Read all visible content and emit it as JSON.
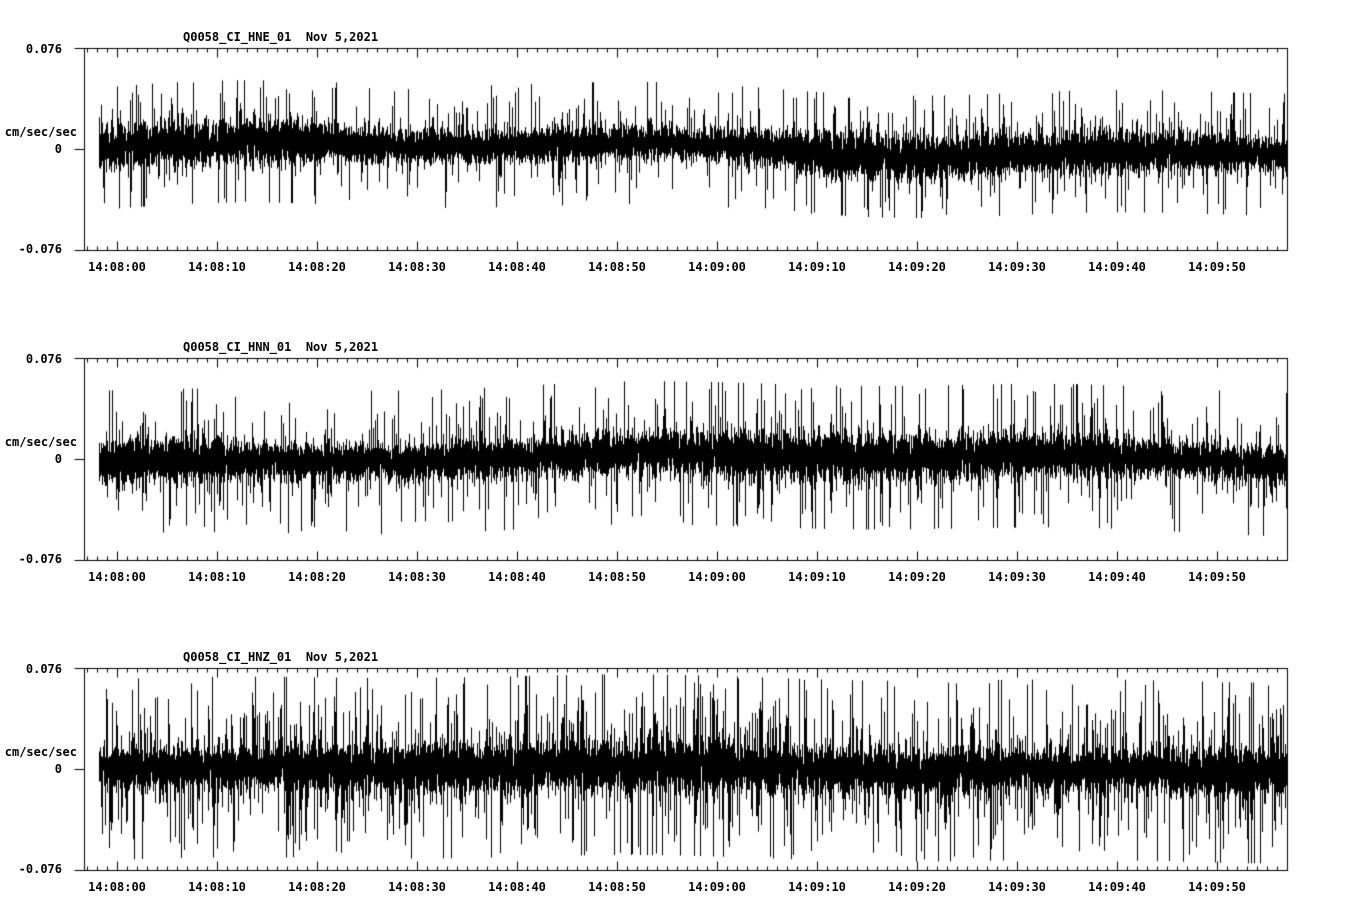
{
  "page": {
    "background_color": "#ffffff",
    "trace_color": "#000000",
    "text_color": "#000000"
  },
  "chart_data": [
    {
      "type": "line",
      "title": "Q0058_CI_HNE_01  Nov 5,2021",
      "ylabel": "cm/sec/sec",
      "ytick_labels": [
        "0.076",
        "0",
        "-0.076"
      ],
      "ylim": [
        -0.076,
        0.076
      ],
      "xtick_labels": [
        "14:08:00",
        "14:08:10",
        "14:08:20",
        "14:08:30",
        "14:08:40",
        "14:08:50",
        "14:09:00",
        "14:09:10",
        "14:09:20",
        "14:09:30",
        "14:09:40",
        "14:09:50"
      ],
      "x_major_tick_seconds": 10,
      "x_minor_tick_seconds": 1,
      "grid": false,
      "legend": false,
      "series": {
        "name": "HNE",
        "units": "cm/sec/sec",
        "kind": "seismic-noise",
        "noise_model": {
          "seed": 105,
          "rms": 0.0072,
          "spike_prob": 0.07,
          "spike_gain": 2.8,
          "spike_cap": 0.046,
          "drift": 0.0045,
          "env_mod": 0.18
        }
      }
    },
    {
      "type": "line",
      "title": "Q0058_CI_HNN_01  Nov 5,2021",
      "ylabel": "cm/sec/sec",
      "ytick_labels": [
        "0.076",
        "0",
        "-0.076"
      ],
      "ylim": [
        -0.076,
        0.076
      ],
      "xtick_labels": [
        "14:08:00",
        "14:08:10",
        "14:08:20",
        "14:08:30",
        "14:08:40",
        "14:08:50",
        "14:09:00",
        "14:09:10",
        "14:09:20",
        "14:09:30",
        "14:09:40",
        "14:09:50"
      ],
      "x_major_tick_seconds": 10,
      "x_minor_tick_seconds": 1,
      "grid": false,
      "legend": false,
      "series": {
        "name": "HNN",
        "units": "cm/sec/sec",
        "kind": "seismic-noise",
        "noise_model": {
          "seed": 208,
          "rms": 0.0078,
          "spike_prob": 0.08,
          "spike_gain": 2.8,
          "spike_cap": 0.054,
          "drift": 0.0032,
          "env_mod": 0.15
        }
      }
    },
    {
      "type": "line",
      "title": "Q0058_CI_HNZ_01  Nov 5,2021",
      "ylabel": "cm/sec/sec",
      "ytick_labels": [
        "0.076",
        "0",
        "-0.076"
      ],
      "ylim": [
        -0.076,
        0.076
      ],
      "xtick_labels": [
        "14:08:00",
        "14:08:10",
        "14:08:20",
        "14:08:30",
        "14:08:40",
        "14:08:50",
        "14:09:00",
        "14:09:10",
        "14:09:20",
        "14:09:30",
        "14:09:40",
        "14:09:50"
      ],
      "x_major_tick_seconds": 10,
      "x_minor_tick_seconds": 1,
      "grid": false,
      "legend": false,
      "series": {
        "name": "HNZ",
        "units": "cm/sec/sec",
        "kind": "seismic-noise",
        "noise_model": {
          "seed": 317,
          "rms": 0.0086,
          "spike_prob": 0.14,
          "spike_gain": 3.2,
          "spike_cap": 0.068,
          "drift": 0.0022,
          "env_mod": 0.1
        }
      }
    }
  ]
}
